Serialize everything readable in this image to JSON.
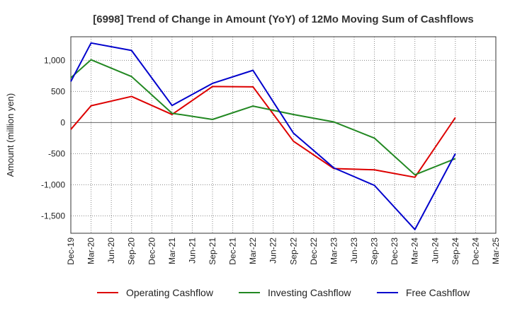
{
  "chart_data": {
    "type": "line",
    "title": "[6998]  Trend of Change in Amount (YoY) of 12Mo Moving Sum of Cashflows",
    "xlabel": "",
    "ylabel": "Amount (million yen)",
    "categories": [
      "Dec-19",
      "Mar-20",
      "Jun-20",
      "Sep-20",
      "Dec-20",
      "Mar-21",
      "Jun-21",
      "Sep-21",
      "Dec-21",
      "Mar-22",
      "Jun-22",
      "Sep-22",
      "Dec-22",
      "Mar-23",
      "Jun-23",
      "Sep-23",
      "Dec-23",
      "Mar-24",
      "Jun-24",
      "Sep-24",
      "Dec-24",
      "Mar-25"
    ],
    "ylim": [
      -1780,
      1380
    ],
    "yticks": [
      -1500,
      -1000,
      -500,
      0,
      500,
      1000
    ],
    "ytick_labels": [
      "-1,500",
      "-1,000",
      "-500",
      "0",
      "500",
      "1,000"
    ],
    "grid": true,
    "legend_position": "bottom",
    "series": [
      {
        "name": "Operating Cashflow",
        "color": "#dd0000",
        "values": [
          -110,
          270,
          null,
          420,
          null,
          130,
          null,
          580,
          null,
          575,
          null,
          -300,
          null,
          -740,
          null,
          -760,
          null,
          -880,
          null,
          80,
          null,
          null
        ]
      },
      {
        "name": "Investing Cashflow",
        "color": "#228822",
        "values": [
          720,
          1010,
          null,
          740,
          null,
          150,
          null,
          50,
          null,
          265,
          null,
          130,
          null,
          10,
          null,
          -250,
          null,
          -840,
          null,
          -580,
          null,
          null
        ]
      },
      {
        "name": "Free Cashflow",
        "color": "#0000cc",
        "values": [
          660,
          1280,
          null,
          1160,
          null,
          275,
          null,
          630,
          null,
          840,
          null,
          -170,
          null,
          -730,
          null,
          -1010,
          null,
          -1720,
          null,
          -500,
          null,
          null
        ]
      }
    ]
  }
}
